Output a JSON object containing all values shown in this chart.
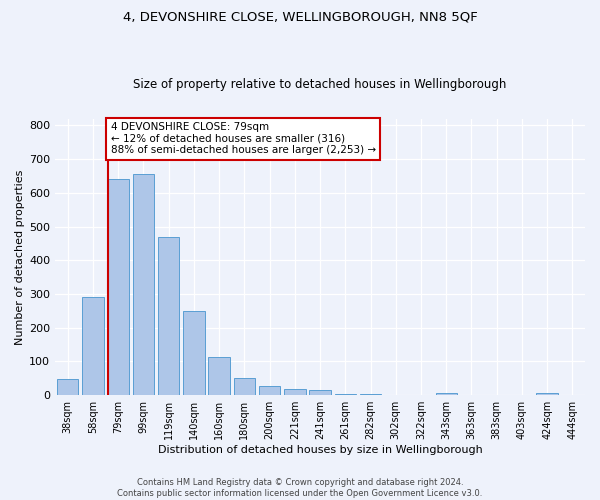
{
  "title": "4, DEVONSHIRE CLOSE, WELLINGBOROUGH, NN8 5QF",
  "subtitle": "Size of property relative to detached houses in Wellingborough",
  "xlabel": "Distribution of detached houses by size in Wellingborough",
  "ylabel": "Number of detached properties",
  "categories": [
    "38sqm",
    "58sqm",
    "79sqm",
    "99sqm",
    "119sqm",
    "140sqm",
    "160sqm",
    "180sqm",
    "200sqm",
    "221sqm",
    "241sqm",
    "261sqm",
    "282sqm",
    "302sqm",
    "322sqm",
    "343sqm",
    "363sqm",
    "383sqm",
    "403sqm",
    "424sqm",
    "444sqm"
  ],
  "values": [
    47,
    290,
    640,
    655,
    470,
    250,
    113,
    50,
    28,
    18,
    15,
    4,
    5,
    0,
    0,
    8,
    0,
    0,
    0,
    8,
    0
  ],
  "bar_color": "#aec6e8",
  "bar_edge_color": "#5a9fd4",
  "vline_color": "#cc0000",
  "annotation_text": "4 DEVONSHIRE CLOSE: 79sqm\n← 12% of detached houses are smaller (316)\n88% of semi-detached houses are larger (2,253) →",
  "annotation_box_color": "#ffffff",
  "annotation_box_edge_color": "#cc0000",
  "ylim": [
    0,
    820
  ],
  "yticks": [
    0,
    100,
    200,
    300,
    400,
    500,
    600,
    700,
    800
  ],
  "background_color": "#eef2fb",
  "grid_color": "#ffffff",
  "footer_line1": "Contains HM Land Registry data © Crown copyright and database right 2024.",
  "footer_line2": "Contains public sector information licensed under the Open Government Licence v3.0."
}
